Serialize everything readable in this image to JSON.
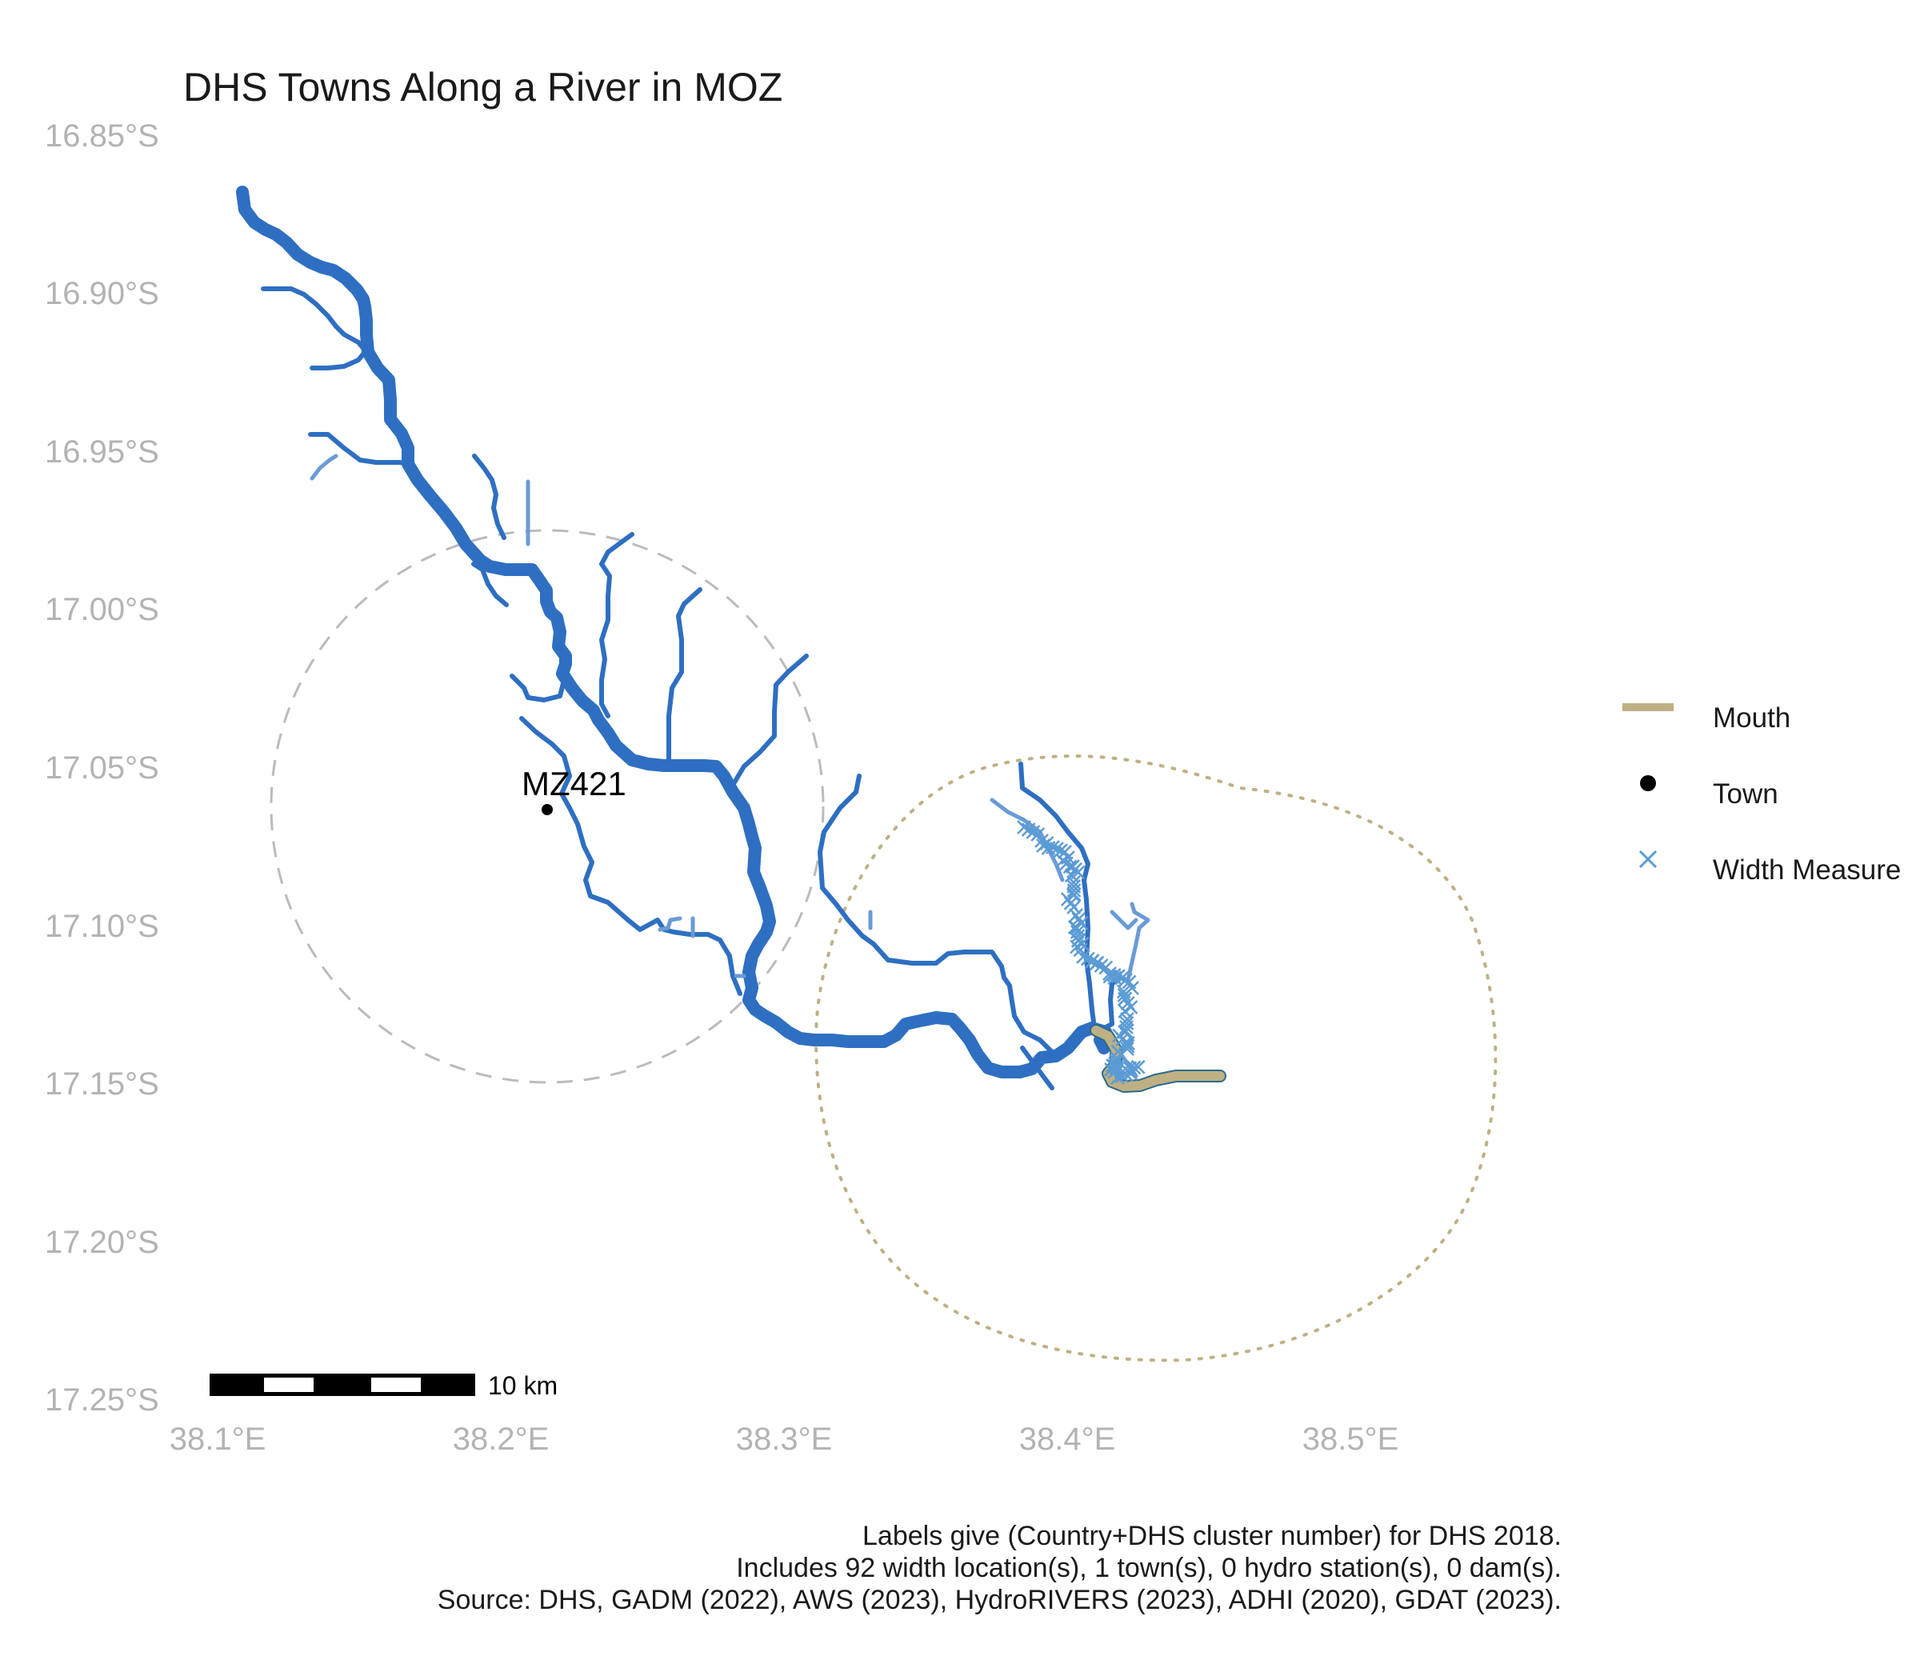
{
  "title": "DHS Towns Along a River in MOZ",
  "axes": {
    "lat_ticks": [
      "16.85°S",
      "16.90°S",
      "16.95°S",
      "17.00°S",
      "17.05°S",
      "17.10°S",
      "17.15°S",
      "17.20°S",
      "17.25°S"
    ],
    "lon_ticks": [
      "38.1°E",
      "38.2°E",
      "38.3°E",
      "38.4°E",
      "38.5°E"
    ]
  },
  "legend": {
    "items": [
      {
        "label": "Mouth",
        "symbol": "line",
        "color": "#bfb084"
      },
      {
        "label": "Town",
        "symbol": "dot",
        "color": "#000000"
      },
      {
        "label": "Width Measure",
        "symbol": "x",
        "color": "#5b9bd5"
      }
    ]
  },
  "town": {
    "label": "MZ421",
    "lon": 38.222,
    "lat": -17.063
  },
  "scale_bar": {
    "label": "10 km"
  },
  "caption": [
    "Labels give (Country+DHS cluster number) for DHS 2018.",
    "Includes 92 width location(s), 1 town(s), 0 hydro station(s), 0 dam(s).",
    "Source: DHS, GADM (2022), AWS (2023), HydroRIVERS (2023), ADHI (2020), GDAT (2023)."
  ],
  "colors": {
    "river_main": "#2e6fc2",
    "river_light": "#6a9bd6",
    "mouth": "#bfb084",
    "width_measure": "#5b9bd5",
    "town_circle": "#bbbbbb",
    "mouth_circle": "#bfb084",
    "axis_text": "#b3b3b3"
  }
}
